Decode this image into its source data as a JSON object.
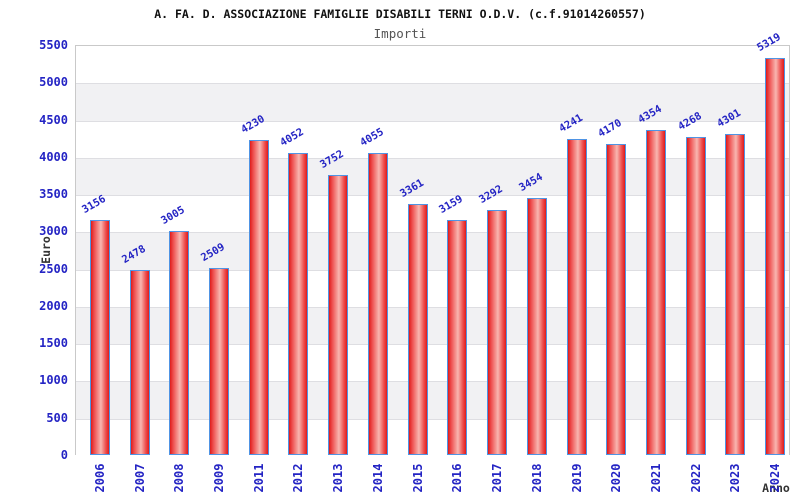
{
  "chart_data": {
    "type": "bar",
    "title": "A. FA. D. ASSOCIAZIONE FAMIGLIE DISABILI TERNI O.D.V. (c.f.91014260557)",
    "subtitle": "Importi",
    "xlabel": "Anno",
    "ylabel": "Euro",
    "categories": [
      "2006",
      "2007",
      "2008",
      "2009",
      "2011",
      "2012",
      "2013",
      "2014",
      "2015",
      "2016",
      "2017",
      "2018",
      "2019",
      "2020",
      "2021",
      "2022",
      "2023",
      "2024"
    ],
    "values": [
      3156,
      2478,
      3005,
      2509,
      4230,
      4052,
      3752,
      4055,
      3361,
      3159,
      3292,
      3454,
      4241,
      4170,
      4354,
      4268,
      4301,
      5319
    ],
    "ylim": [
      0,
      5500
    ],
    "yticks": [
      0,
      500,
      1000,
      1500,
      2000,
      2500,
      3000,
      3500,
      4000,
      4500,
      5000,
      5500
    ],
    "grid": "alternating-horizontal-bands",
    "legend": "none",
    "value_label_rotation_deg": -30,
    "x_tick_rotation_deg": -90,
    "colors": {
      "title_text": "#111111",
      "subtitle_text": "#555555",
      "axis_value_text": "#2424c4",
      "axis_title_text": "#333333",
      "bar_border": "#4f94e4",
      "bar_red_dark": "#df1b1b",
      "bar_red_mid": "#ee4f4f",
      "bar_red_light": "#f8b6b0",
      "band_alt": "#f1f1f3",
      "gridline": "#dedee2",
      "plot_border": "#c9c9c9",
      "background": "#ffffff"
    }
  }
}
